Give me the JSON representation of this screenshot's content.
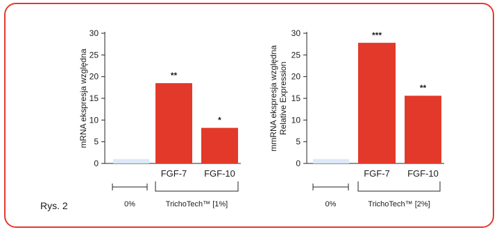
{
  "figure_label": "Rys. 2",
  "colors": {
    "frame": "#e3392a",
    "bar": "#e3392a",
    "control": "#dce9f8",
    "axis": "#222222"
  },
  "chart_data": [
    {
      "type": "bar",
      "ylabel_lines": [
        "mRNA ekspresja względna"
      ],
      "ylim": [
        0,
        30
      ],
      "yticks": [
        0,
        5,
        10,
        15,
        20,
        25,
        30
      ],
      "categories": [
        "",
        "FGF-7",
        "FGF-10"
      ],
      "values": [
        1,
        18.5,
        8.2
      ],
      "significance": [
        "",
        "**",
        "*"
      ],
      "groups": [
        {
          "label": "0%",
          "bracket": "span"
        },
        {
          "label": "TrichoTech™ [1%]",
          "bracket": "brace"
        }
      ]
    },
    {
      "type": "bar",
      "ylabel_lines": [
        "mmRNA ekspresja względna",
        "Relative Expression"
      ],
      "ylim": [
        0,
        30
      ],
      "yticks": [
        0,
        5,
        10,
        15,
        20,
        25,
        30
      ],
      "categories": [
        "",
        "FGF-7",
        "FGF-10"
      ],
      "values": [
        1,
        27.8,
        15.6
      ],
      "significance": [
        "",
        "***",
        "**"
      ],
      "groups": [
        {
          "label": "0%",
          "bracket": "span"
        },
        {
          "label": "TrichoTech™ [2%]",
          "bracket": "brace"
        }
      ]
    }
  ]
}
